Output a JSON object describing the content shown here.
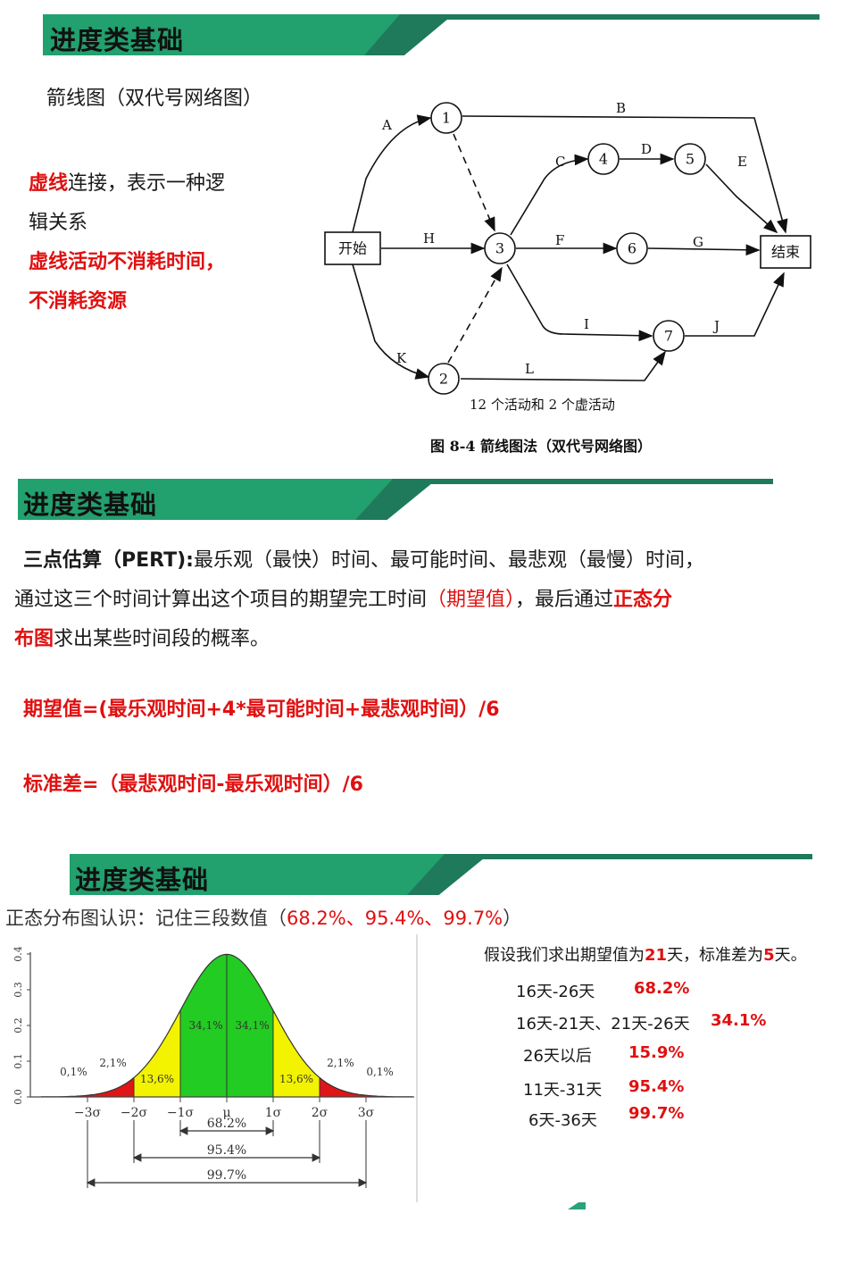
{
  "section1": {
    "title": "进度类基础",
    "subtitle": "箭线图（双代号网络图）",
    "note_red1": "虚线",
    "note_black1": "连接，表示一种逻",
    "note_black2": "辑关系",
    "note_red2": "虚线活动不消耗时间，",
    "note_red3": "不消耗资源",
    "diagram": {
      "nodes": [
        "1",
        "2",
        "3",
        "4",
        "5",
        "6",
        "7"
      ],
      "start_label": "开始",
      "end_label": "结束",
      "activities": [
        "A",
        "B",
        "C",
        "D",
        "E",
        "F",
        "G",
        "H",
        "I",
        "J",
        "K",
        "L"
      ],
      "caption_inner": "12 个活动和 2 个虚活动",
      "caption": "图 8-4    箭线图法（双代号网络图）"
    }
  },
  "section2": {
    "title": "进度类基础",
    "p1_bold": "三点估算（PERT):",
    "p1_rest": "最乐观（最快）时间、最可能时间、最悲观（最慢）时间，",
    "p2_a": "通过这三个时间计算出这个项目的期望完工时间",
    "p2_red": "（期望值）",
    "p2_b": "，最后通过",
    "p2_red_bold": "正态分",
    "p3_red_bold": "布图",
    "p3_rest": "求出某些时间段的概率。",
    "formula1": "期望值=(最乐观时间+4*最可能时间+最悲观时间）/6",
    "formula2": "标准差=（最悲观时间-最乐观时间）/6"
  },
  "section3": {
    "title": "进度类基础",
    "intro_a": "正态分布图认识：记住三段数值（",
    "intro_red": "68.2%、95.4%、99.7%",
    "intro_b": "）",
    "chart": {
      "y_ticks": [
        "0.0",
        "0.1",
        "0.2",
        "0.3",
        "0.4"
      ],
      "x_ticks": [
        "−3σ",
        "−2σ",
        "−1σ",
        "μ",
        "1σ",
        "2σ",
        "3σ"
      ],
      "region_labels": [
        "0,1%",
        "2,1%",
        "13,6%",
        "34,1%",
        "34,1%",
        "13,6%",
        "2,1%",
        "0,1%"
      ],
      "ranges": [
        "68.2%",
        "95.4%",
        "99.7%"
      ],
      "colors": {
        "center": "#22cc22",
        "mid": "#f3f300",
        "tail": "#e01515"
      }
    },
    "assume_a": "假设我们求出期望值为",
    "assume_v1": "21",
    "assume_b": "天，标准差为",
    "assume_v2": "5",
    "assume_c": "天。",
    "rows": [
      {
        "range": "16天-26天",
        "value": "68.2%"
      },
      {
        "range": "16天-21天、21天-26天",
        "value": "34.1%"
      },
      {
        "range": "26天以后",
        "value": "15.9%"
      },
      {
        "range": "11天-31天",
        "value": "95.4%"
      },
      {
        "range": "6天-36天",
        "value": "99.7%"
      }
    ]
  },
  "theme": {
    "header_green": "#1e7a5a",
    "accent_red": "#e01010"
  }
}
